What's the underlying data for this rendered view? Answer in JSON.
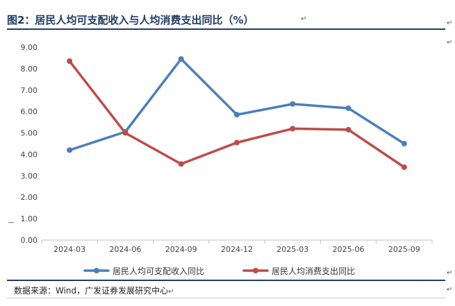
{
  "figure": {
    "title": "图2：居民人均可支配收入与人均消费支出同比（%）",
    "source": "数据来源：Wind，广发证券发展研究中心"
  },
  "chart_data": {
    "type": "line",
    "categories": [
      "2024-03",
      "2024-06",
      "2024-09",
      "2024-12",
      "2025-03",
      "2025-06",
      "2025-09"
    ],
    "series": [
      {
        "name": "居民人均可支配收入同比",
        "color": "#4a7ebb",
        "values": [
          4.2,
          5.05,
          8.45,
          5.85,
          6.35,
          6.15,
          4.5
        ]
      },
      {
        "name": "居民人均消费支出同比",
        "color": "#be4b48",
        "values": [
          8.35,
          5.0,
          3.55,
          4.55,
          5.2,
          5.15,
          3.4
        ]
      }
    ],
    "yticks": [
      "0.00",
      "1.00",
      "2.00",
      "3.00",
      "4.00",
      "5.00",
      "6.00",
      "7.00",
      "8.00",
      "9.00"
    ],
    "ylim": [
      0,
      9
    ],
    "grid": false,
    "legend_position": "bottom"
  }
}
